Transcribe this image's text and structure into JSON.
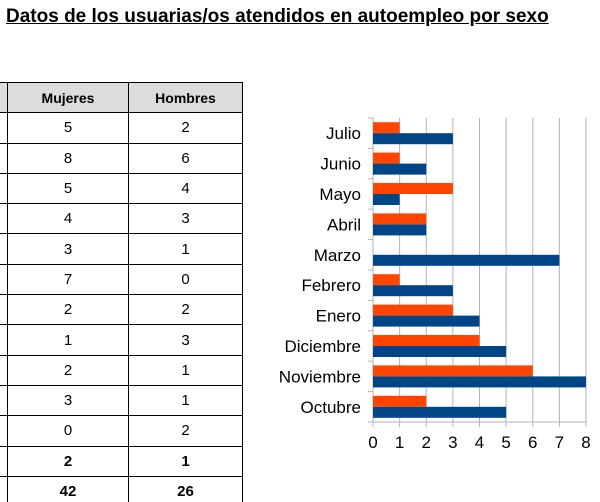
{
  "title": "Datos de los usuarias/os atendidos en autoempleo por sexo",
  "table": {
    "headers": [
      "Mujeres",
      "Hombres"
    ],
    "rows": [
      {
        "mujeres": "5",
        "hombres": "2"
      },
      {
        "mujeres": "8",
        "hombres": "6"
      },
      {
        "mujeres": "5",
        "hombres": "4"
      },
      {
        "mujeres": "4",
        "hombres": "3"
      },
      {
        "mujeres": "3",
        "hombres": "1"
      },
      {
        "mujeres": "7",
        "hombres": "0"
      },
      {
        "mujeres": "2",
        "hombres": "2"
      },
      {
        "mujeres": "1",
        "hombres": "3"
      },
      {
        "mujeres": "2",
        "hombres": "1"
      },
      {
        "mujeres": "3",
        "hombres": "1"
      },
      {
        "mujeres": "0",
        "hombres": "2"
      },
      {
        "mujeres": "2",
        "hombres": "1"
      }
    ],
    "total": {
      "mujeres": "42",
      "hombres": "26"
    }
  },
  "chart_data": {
    "type": "bar",
    "orientation": "horizontal",
    "categories": [
      "Julio",
      "Junio",
      "Mayo",
      "Abril",
      "Marzo",
      "Febrero",
      "Enero",
      "Diciembre",
      "Noviembre",
      "Octubre"
    ],
    "series": [
      {
        "values": [
          1,
          1,
          3,
          2,
          0,
          1,
          3,
          4,
          6,
          2
        ],
        "color": "#ff4500"
      },
      {
        "values": [
          3,
          2,
          1,
          2,
          7,
          3,
          4,
          5,
          8,
          5
        ],
        "color": "#004586"
      }
    ],
    "xlim": [
      0,
      8
    ],
    "x_ticks": [
      "0",
      "1",
      "2",
      "3",
      "4",
      "5",
      "6",
      "7",
      "8"
    ],
    "grid": "vertical",
    "legend": "none"
  }
}
